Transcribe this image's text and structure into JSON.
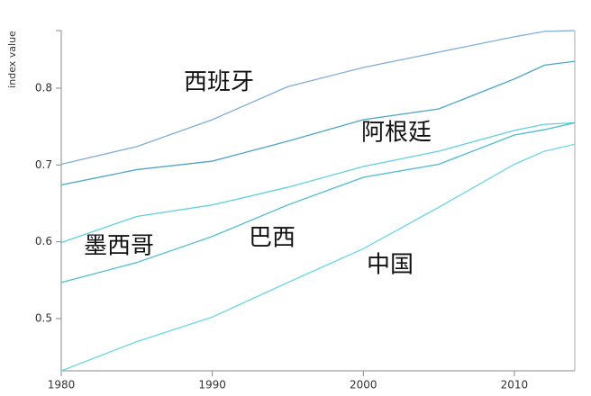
{
  "chart_data": {
    "type": "line",
    "y_label": "index value",
    "x": [
      1980,
      1985,
      1990,
      1995,
      2000,
      2005,
      2010,
      2012,
      2014
    ],
    "xlim": [
      1980,
      2014
    ],
    "xticks": [
      1980,
      1990,
      2000,
      2010
    ],
    "ylim": [
      0.432,
      0.875
    ],
    "yticks": [
      0.5,
      0.6,
      0.7,
      0.8
    ],
    "series": [
      {
        "name": "西班牙",
        "color": "#7eaed6",
        "values": [
          0.701,
          0.724,
          0.759,
          0.802,
          0.827,
          0.847,
          0.867,
          0.874,
          0.875
        ]
      },
      {
        "name": "阿根廷",
        "color": "#4ea6c6",
        "values": [
          0.674,
          0.694,
          0.705,
          0.731,
          0.759,
          0.773,
          0.812,
          0.83,
          0.835
        ]
      },
      {
        "name": "墨西哥",
        "color": "#5fd2da",
        "values": [
          0.599,
          0.633,
          0.648,
          0.671,
          0.698,
          0.718,
          0.745,
          0.753,
          0.755
        ]
      },
      {
        "name": "巴西",
        "color": "#49bccb",
        "values": [
          0.547,
          0.573,
          0.607,
          0.648,
          0.684,
          0.701,
          0.739,
          0.746,
          0.755
        ]
      },
      {
        "name": "中国",
        "color": "#6ad8e2",
        "values": [
          0.432,
          0.47,
          0.502,
          0.547,
          0.591,
          0.645,
          0.701,
          0.718,
          0.727
        ]
      }
    ]
  }
}
